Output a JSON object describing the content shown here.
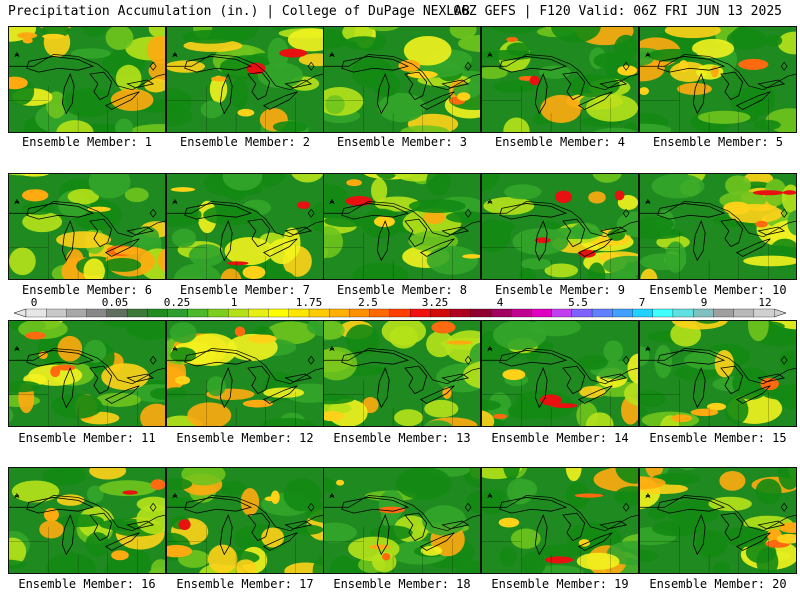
{
  "header": {
    "title_left": "Precipitation Accumulation (in.) | College of DuPage NEXLAB",
    "title_right": "06Z GEFS | F120 Valid: 06Z FRI JUN 13 2025"
  },
  "members": [
    {
      "label": "Ensemble Member: 1"
    },
    {
      "label": "Ensemble Member: 2"
    },
    {
      "label": "Ensemble Member: 3"
    },
    {
      "label": "Ensemble Member: 4"
    },
    {
      "label": "Ensemble Member: 5"
    },
    {
      "label": "Ensemble Member: 6"
    },
    {
      "label": "Ensemble Member: 7"
    },
    {
      "label": "Ensemble Member: 8"
    },
    {
      "label": "Ensemble Member: 9"
    },
    {
      "label": "Ensemble Member: 10"
    },
    {
      "label": "Ensemble Member: 11"
    },
    {
      "label": "Ensemble Member: 12"
    },
    {
      "label": "Ensemble Member: 13"
    },
    {
      "label": "Ensemble Member: 14"
    },
    {
      "label": "Ensemble Member: 15"
    },
    {
      "label": "Ensemble Member: 16"
    },
    {
      "label": "Ensemble Member: 17"
    },
    {
      "label": "Ensemble Member: 18"
    },
    {
      "label": "Ensemble Member: 19"
    },
    {
      "label": "Ensemble Member: 20"
    }
  ],
  "colorbar": {
    "tick_labels": [
      "0",
      "0.05",
      "0.25",
      "1",
      "1.75",
      "2.5",
      "3.25",
      "4",
      "5.5",
      "7",
      "9",
      "12"
    ],
    "colors": [
      "#e6e6e6",
      "#c8c8c8",
      "#a8a8a8",
      "#888888",
      "#607060",
      "#3c7a3c",
      "#228b22",
      "#2e9e2e",
      "#4cb82c",
      "#7ccd1c",
      "#b4e01a",
      "#e6f014",
      "#ffff00",
      "#ffe600",
      "#ffcc00",
      "#ffb000",
      "#ff9000",
      "#ff6a00",
      "#ff4000",
      "#f01010",
      "#d20a0a",
      "#b00020",
      "#900030",
      "#a00060",
      "#c00090",
      "#e000c0",
      "#c040f0",
      "#8060ff",
      "#6080ff",
      "#40a0ff",
      "#20d0ff",
      "#40ffff",
      "#60e0e0",
      "#80c0c0",
      "#a0a0a0",
      "#b8b8b8",
      "#d0d0d0"
    ]
  },
  "legend": {
    "precip_colors": [
      "#138a13",
      "#33a52a",
      "#6fc41e",
      "#b6e21a",
      "#f2f21e",
      "#ffd21a",
      "#ffaa10",
      "#ff6a10",
      "#e81010",
      "#bb1e7a",
      "#8a8a8a"
    ]
  }
}
